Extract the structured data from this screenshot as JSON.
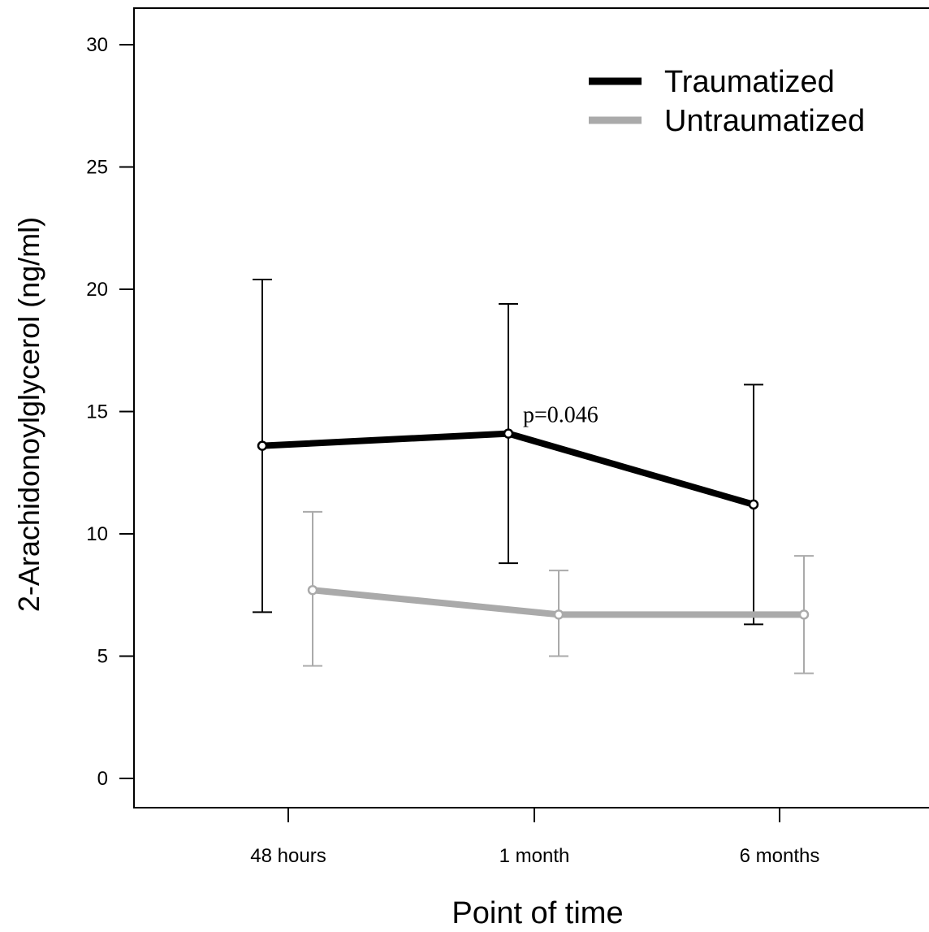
{
  "chart_data": {
    "type": "line",
    "title": "",
    "xlabel": "Point of time",
    "ylabel": "2-Arachidonoylglycerol (ng/ml)",
    "ylim": [
      0,
      30
    ],
    "yticks": [
      0,
      5,
      10,
      15,
      20,
      25,
      30
    ],
    "categories": [
      "48 hours",
      "1 month",
      "6 months"
    ],
    "grid": false,
    "legend_position": "top-right",
    "error_bars": true,
    "series": [
      {
        "name": "Traumatized",
        "color": "#000000",
        "values": [
          13.6,
          14.1,
          11.2
        ],
        "err_low": [
          6.8,
          8.8,
          6.3
        ],
        "err_high": [
          20.4,
          19.4,
          16.1
        ]
      },
      {
        "name": "Untraumatized",
        "color": "#aaaaaa",
        "values": [
          7.7,
          6.7,
          6.7
        ],
        "err_low": [
          4.6,
          5.0,
          4.3
        ],
        "err_high": [
          10.9,
          8.5,
          9.1
        ]
      }
    ],
    "annotations": [
      {
        "text": "p=0.046",
        "category": "1 month",
        "series": "Traumatized"
      }
    ]
  }
}
